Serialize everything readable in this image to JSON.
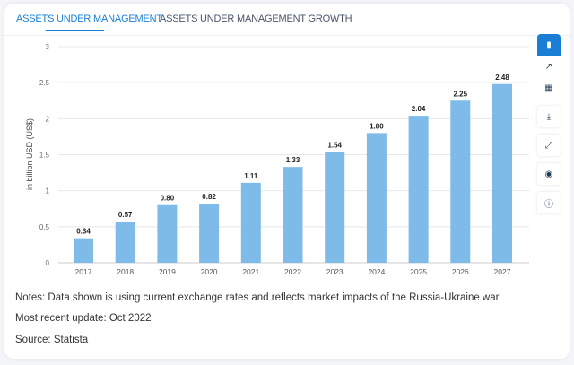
{
  "tabs": [
    {
      "label": "ASSETS UNDER MANAGEMENT",
      "active": true
    },
    {
      "label": "ASSETS UNDER MANAGEMENT GROWTH",
      "active": false
    }
  ],
  "toolbar": [
    "bar-chart-icon",
    "line-chart-icon",
    "table-icon",
    "download-icon",
    "expand-icon",
    "eye-slash-icon",
    "info-icon"
  ],
  "accent": "#1a7fd4",
  "chart_data": {
    "type": "bar",
    "categories": [
      "2017",
      "2018",
      "2019",
      "2020",
      "2021",
      "2022",
      "2023",
      "2024",
      "2025",
      "2026",
      "2027"
    ],
    "values": [
      0.34,
      0.57,
      0.8,
      0.82,
      1.11,
      1.33,
      1.54,
      1.8,
      2.04,
      2.25,
      2.48
    ],
    "data_labels": [
      "0.34",
      "0.57",
      "0.80",
      "0.82",
      "1.11",
      "1.33",
      "1.54",
      "1.80",
      "2.04",
      "2.25",
      "2.48"
    ],
    "ylabel": "in billion USD (US$)",
    "yticks": [
      "0",
      "0.5",
      "1",
      "1.5",
      "2",
      "2.5",
      "3"
    ],
    "ylim": [
      0,
      3
    ],
    "grid": true,
    "bar_color": "#7ebbe9"
  },
  "notes": {
    "text": "Notes: Data shown is using current exchange rates and reflects market impacts of the Russia-Ukraine war.",
    "update": "Most recent update: Oct 2022",
    "source": "Source: Statista"
  }
}
